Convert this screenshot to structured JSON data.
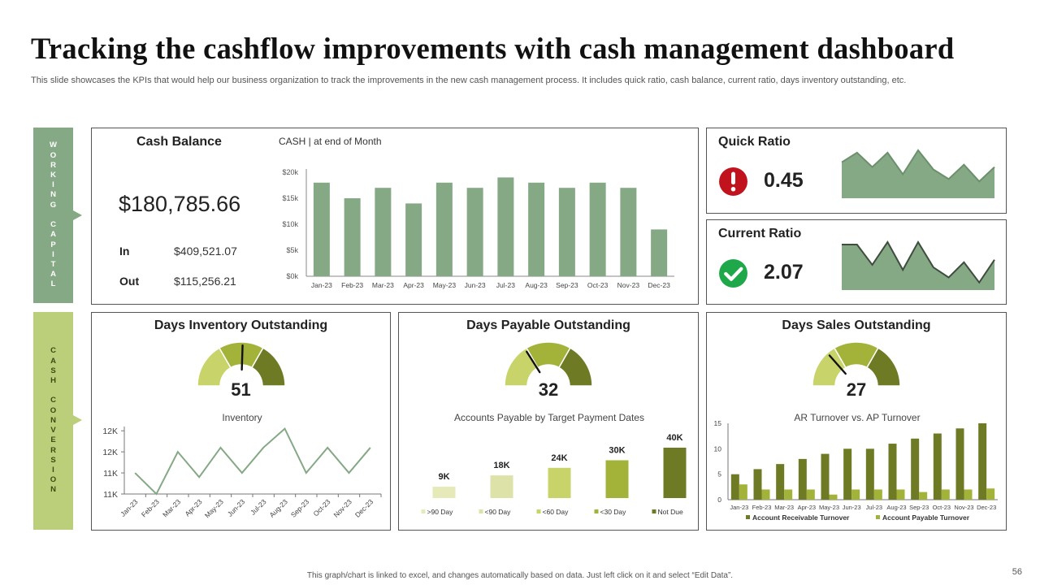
{
  "title": "Tracking the cashflow improvements with cash management dashboard",
  "subtitle": "This slide showcases the KPIs that would help our business organization to track the improvements in the new cash management process. It includes quick ratio, cash balance, current ratio, days inventory outstanding, etc.",
  "footer_note": "This graph/chart is linked to excel, and changes automatically based on data. Just left click on it and select “Edit Data”.",
  "page_number": "56",
  "tabs": {
    "working_capital": "WORKING CAPITAL",
    "cash_conversion": "CASH CONVERSION"
  },
  "cash_balance": {
    "heading": "Cash Balance",
    "amount": "$180,785.66",
    "in_label": "In",
    "in_value": "$409,521.07",
    "out_label": "Out",
    "out_value": "$115,256.21"
  },
  "quick_ratio": {
    "title": "Quick Ratio",
    "value": "0.45",
    "icon": "alert-icon"
  },
  "current_ratio": {
    "title": "Current Ratio",
    "value": "2.07",
    "icon": "check-icon"
  },
  "dio": {
    "title": "Days Inventory Outstanding",
    "value": "51"
  },
  "dpo": {
    "title": "Days Payable Outstanding",
    "value": "32"
  },
  "dso": {
    "title": "Days Sales Outstanding",
    "value": "27"
  },
  "colors": {
    "sage": "#85a885",
    "olive_dark": "#6f7a24",
    "olive": "#a3b33a",
    "olive_mid": "#c8d46a",
    "olive_light": "#e6eab8",
    "alert_red": "#c0131e",
    "check_green": "#1fa84a"
  },
  "chart_data": [
    {
      "id": "cash",
      "type": "bar",
      "title": "CASH | at end of Month",
      "categories": [
        "Jan-23",
        "Feb-23",
        "Mar-23",
        "Apr-23",
        "May-23",
        "Jun-23",
        "Jul-23",
        "Aug-23",
        "Sep-23",
        "Oct-23",
        "Nov-23",
        "Dec-23"
      ],
      "values": [
        18000,
        15000,
        17000,
        14000,
        18000,
        17000,
        19000,
        18000,
        17000,
        18000,
        17000,
        9000
      ],
      "yticks": [
        "$0k",
        "$5k",
        "$10k",
        "$15k",
        "$20k"
      ],
      "ylim": [
        0,
        20000
      ]
    },
    {
      "id": "quick_spark",
      "type": "area",
      "title": "",
      "values": [
        15,
        19,
        13,
        19,
        10,
        20,
        12,
        8,
        14,
        7,
        13
      ]
    },
    {
      "id": "current_spark",
      "type": "area",
      "title": "",
      "values": [
        18,
        18,
        10,
        19,
        8,
        19,
        9,
        5,
        11,
        3,
        12
      ]
    },
    {
      "id": "dio_gauge",
      "type": "gauge",
      "title": "Days Inventory Outstanding",
      "bands": [
        33.3,
        33.3,
        33.4
      ],
      "needle": 51,
      "range": [
        0,
        100
      ]
    },
    {
      "id": "dpo_gauge",
      "type": "gauge",
      "title": "Days Payable Outstanding",
      "bands": [
        33.3,
        33.3,
        33.4
      ],
      "needle": 32,
      "range": [
        0,
        100
      ]
    },
    {
      "id": "dso_gauge",
      "type": "gauge",
      "title": "Days Sales Outstanding",
      "bands": [
        33.3,
        33.3,
        33.4
      ],
      "needle": 27,
      "range": [
        0,
        100
      ]
    },
    {
      "id": "inventory",
      "type": "line",
      "title": "Inventory",
      "categories": [
        "Jan-23",
        "Feb-23",
        "Mar-23",
        "Apr-23",
        "May-23",
        "Jun-23",
        "Jul-23",
        "Aug-23",
        "Sep-23",
        "Oct-23",
        "Nov-23",
        "Dec-23"
      ],
      "values": [
        11400,
        10900,
        11900,
        11300,
        12000,
        11400,
        12000,
        12450,
        11400,
        12000,
        11400,
        12000
      ],
      "ytick_values": [
        10900,
        11400,
        11900,
        12400
      ],
      "ytick_labels": [
        "11K",
        "11K",
        "12K",
        "12K"
      ],
      "ylim": [
        10900,
        12500
      ]
    },
    {
      "id": "ap_target",
      "type": "bar",
      "title": "Accounts Payable by Target  Payment Dates",
      "categories": [
        ">90 Day",
        "<90 Day",
        "<60 Day",
        "<30 Day",
        "Not Due"
      ],
      "values": [
        9,
        18,
        24,
        30,
        40
      ],
      "labels": [
        "9K",
        "18K",
        "24K",
        "30K",
        "40K"
      ],
      "ylim": [
        0,
        40
      ]
    },
    {
      "id": "turnover",
      "type": "bar",
      "title": "AR Turnover  vs.  AP Turnover",
      "categories": [
        "Jan-23",
        "Feb-23",
        "Mar-23",
        "Apr-23",
        "May-23",
        "Jun-23",
        "Jul-23",
        "Aug-23",
        "Sep-23",
        "Oct-23",
        "Nov-23",
        "Dec-23"
      ],
      "series": [
        {
          "name": "Account Receivable Turnover",
          "values": [
            5,
            6,
            7,
            8,
            9,
            10,
            10,
            11,
            12,
            13,
            14,
            15
          ]
        },
        {
          "name": "Account Payable Turnover",
          "values": [
            3,
            2,
            2,
            2,
            1,
            2,
            2,
            2,
            1.5,
            2,
            2,
            2.2
          ]
        }
      ],
      "yticks": [
        "0",
        "5",
        "10",
        "15"
      ],
      "ylim": [
        0,
        15
      ]
    }
  ]
}
